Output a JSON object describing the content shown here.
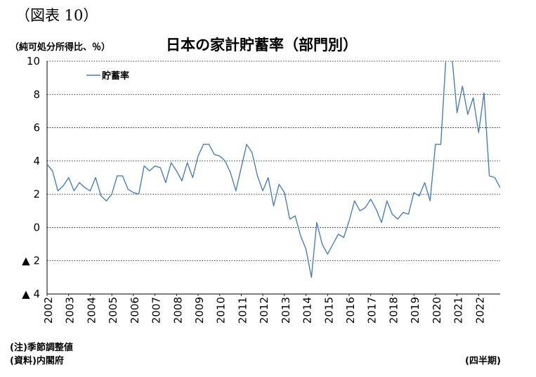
{
  "figure_label": "（図表 10）",
  "unit_label": "（純可処分所得比、％）",
  "footer": {
    "note": "(注)季節調整値",
    "source": "(資料)内閣府",
    "frequency": "(四半期)"
  },
  "chart_data": {
    "type": "line",
    "title": "日本の家計貯蓄率（部門別）",
    "xlabel": "",
    "ylabel": "",
    "ylim": [
      -4,
      10
    ],
    "yticks": [
      10,
      8,
      6,
      4,
      2,
      0,
      -2,
      -4
    ],
    "ytick_labels": [
      "10",
      "8",
      "6",
      "4",
      "2",
      "0",
      "▲ 2",
      "▲ 4"
    ],
    "xticks": [
      "2002",
      "2003",
      "2004",
      "2005",
      "2006",
      "2007",
      "2008",
      "2009",
      "2010",
      "2011",
      "2012",
      "2013",
      "2014",
      "2015",
      "2016",
      "2017",
      "2018",
      "2019",
      "2020",
      "2021",
      "2022"
    ],
    "xlim": [
      2002.0,
      2023.0
    ],
    "grid": "horizontal dotted",
    "legend_position": "top-left",
    "color": "#4a7fb5",
    "series": [
      {
        "name": "貯蓄率",
        "x_start": "2002 Q1",
        "frequency": "quarterly",
        "values": [
          3.8,
          3.4,
          2.2,
          2.5,
          3.0,
          2.2,
          2.7,
          2.4,
          2.2,
          3.0,
          1.9,
          1.6,
          2.0,
          3.1,
          3.1,
          2.3,
          2.1,
          2.0,
          3.7,
          3.4,
          3.7,
          3.6,
          2.7,
          3.9,
          3.4,
          2.8,
          3.9,
          3.0,
          4.3,
          5.0,
          5.0,
          4.4,
          4.3,
          4.0,
          3.3,
          2.2,
          3.6,
          5.0,
          4.5,
          3.1,
          2.2,
          3.0,
          1.3,
          2.6,
          2.1,
          0.5,
          0.7,
          -0.5,
          -1.3,
          -3.0,
          0.3,
          -1.0,
          -1.6,
          -1.0,
          -0.4,
          -0.6,
          0.4,
          1.6,
          1.0,
          1.2,
          1.7,
          1.1,
          0.3,
          1.6,
          0.8,
          0.5,
          0.9,
          0.8,
          2.1,
          1.9,
          2.7,
          1.6,
          5.0,
          5.0,
          10.5,
          10.5,
          6.9,
          8.5,
          6.8,
          7.8,
          5.7,
          8.1,
          3.1,
          3.0,
          2.4
        ]
      }
    ]
  }
}
